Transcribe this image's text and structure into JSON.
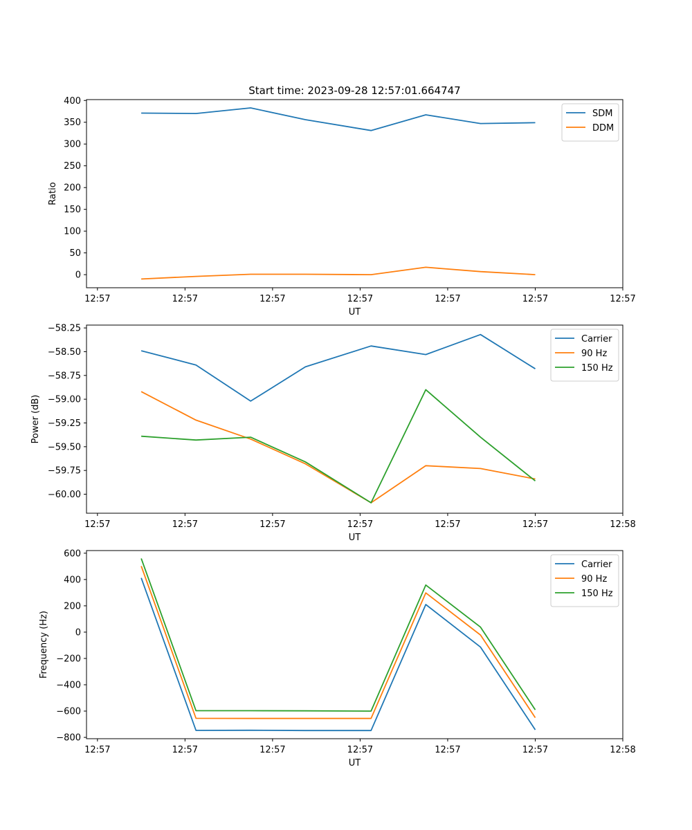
{
  "chart_data": [
    {
      "type": "line",
      "title": "Start time: 2023-09-28 12:57:01.664747",
      "xlabel": "UT",
      "ylabel": "Ratio",
      "xlim": [
        -0.4,
        9.3
      ],
      "x": [
        0.4,
        1.4,
        2.4,
        3.4,
        4.4,
        5.4,
        6.4,
        7.4
      ],
      "xticks": [
        -0.2,
        1.4,
        3.0,
        4.6,
        6.2,
        7.8,
        9.4
      ],
      "xtick_labels": [
        "12:57",
        "12:57",
        "12:57",
        "12:57",
        "12:57",
        "12:57",
        "12:57"
      ],
      "ylim": [
        -30,
        402
      ],
      "yticks": [
        0,
        50,
        100,
        150,
        200,
        250,
        300,
        350,
        400
      ],
      "ytick_labels": [
        "0",
        "50",
        "100",
        "150",
        "200",
        "250",
        "300",
        "350",
        "400"
      ],
      "legend": "top-right",
      "series": [
        {
          "name": "SDM",
          "color": "#1f77b4",
          "x": [
            0.6,
            1.6,
            2.6,
            3.6,
            4.8,
            5.8,
            6.8,
            7.8
          ],
          "values": [
            371,
            370,
            383,
            356,
            331,
            367,
            347,
            349
          ]
        },
        {
          "name": "DDM",
          "color": "#ff7f0e",
          "x": [
            0.6,
            1.6,
            2.6,
            3.6,
            4.8,
            5.8,
            6.8,
            7.8
          ],
          "values": [
            -10,
            -4,
            1,
            1,
            0,
            17,
            7,
            0
          ]
        }
      ]
    },
    {
      "type": "line",
      "xlabel": "UT",
      "ylabel": "Power (dB)",
      "ylim": [
        -60.2,
        -58.22
      ],
      "yticks": [
        -60.0,
        -59.75,
        -59.5,
        -59.25,
        -59.0,
        -58.75,
        -58.5,
        -58.25
      ],
      "ytick_labels": [
        "−60.00",
        "−59.75",
        "−59.50",
        "−59.25",
        "−59.00",
        "−58.75",
        "−58.50",
        "−58.25"
      ],
      "xtick_labels": [
        "12:57",
        "12:57",
        "12:57",
        "12:57",
        "12:57",
        "12:57",
        "12:58"
      ],
      "legend": "top-right",
      "series": [
        {
          "name": "Carrier",
          "color": "#1f77b4",
          "values": [
            -58.49,
            -58.64,
            -59.02,
            -58.66,
            -58.44,
            -58.53,
            -58.32,
            -58.68
          ]
        },
        {
          "name": "90 Hz",
          "color": "#ff7f0e",
          "values": [
            -58.92,
            -59.22,
            -59.42,
            -59.68,
            -60.09,
            -59.7,
            -59.73,
            -59.84
          ]
        },
        {
          "name": "150 Hz",
          "color": "#2ca02c",
          "values": [
            -59.39,
            -59.43,
            -59.4,
            -59.66,
            -60.09,
            -58.9,
            -59.4,
            -59.86
          ]
        }
      ]
    },
    {
      "type": "line",
      "xlabel": "UT",
      "ylabel": "Frequency (Hz)",
      "ylim": [
        -810,
        620
      ],
      "yticks": [
        -800,
        -600,
        -400,
        -200,
        0,
        200,
        400,
        600
      ],
      "ytick_labels": [
        "−800",
        "−600",
        "−400",
        "−200",
        "0",
        "200",
        "400",
        "600"
      ],
      "xtick_labels": [
        "12:57",
        "12:57",
        "12:57",
        "12:57",
        "12:57",
        "12:57",
        "12:58"
      ],
      "legend": "top-right",
      "series": [
        {
          "name": "Carrier",
          "color": "#1f77b4",
          "values": [
            412,
            -747,
            -746,
            -748,
            -748,
            210,
            -114,
            -742
          ]
        },
        {
          "name": "90 Hz",
          "color": "#ff7f0e",
          "values": [
            502,
            -655,
            -656,
            -656,
            -656,
            298,
            -22,
            -650
          ]
        },
        {
          "name": "150 Hz",
          "color": "#2ca02c",
          "values": [
            560,
            -597,
            -597,
            -598,
            -600,
            358,
            38,
            -590
          ]
        }
      ]
    }
  ]
}
